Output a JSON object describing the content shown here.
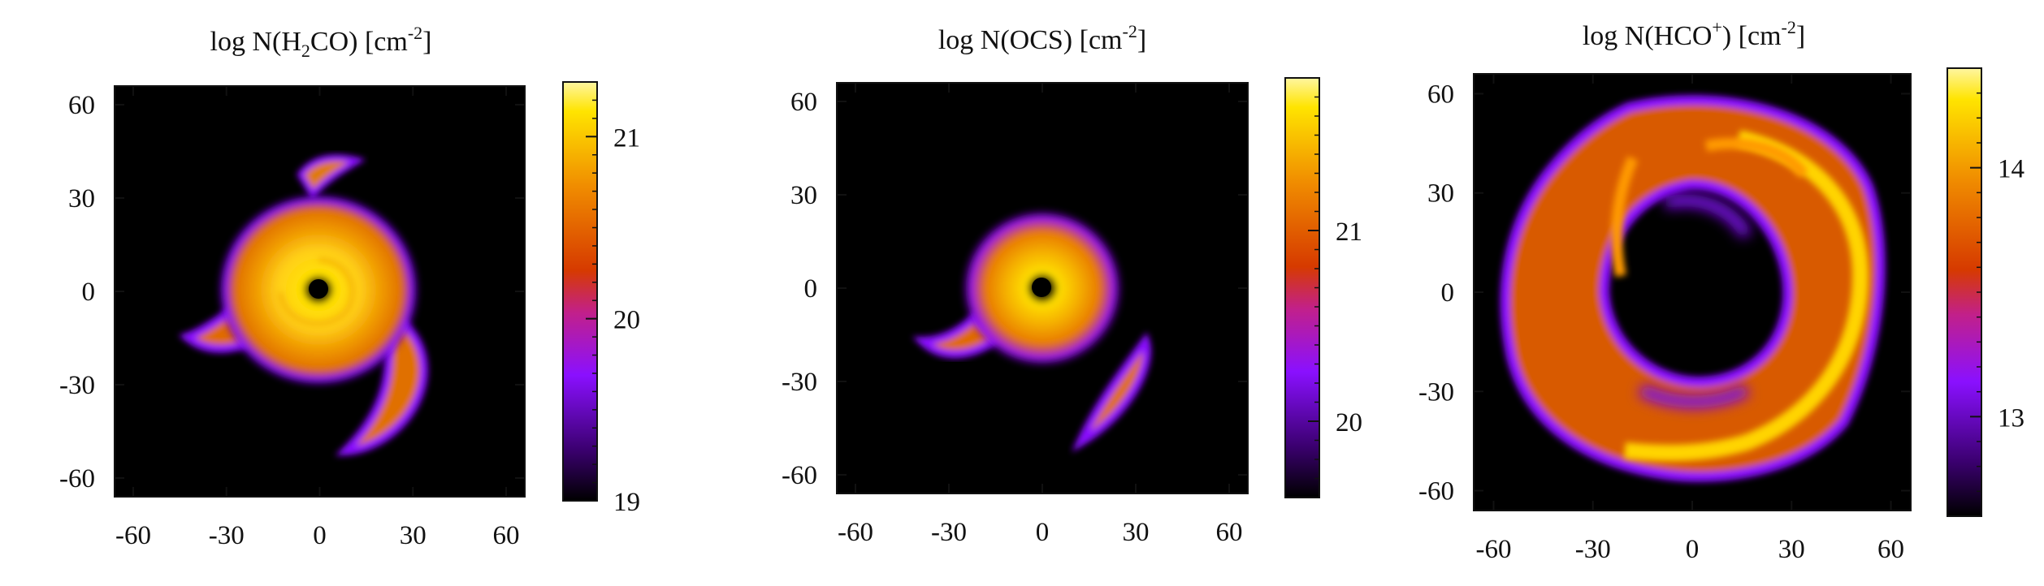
{
  "chart_data": [
    {
      "type": "heatmap",
      "title": {
        "pre": "log N(H",
        "sub": "2",
        "mid": "CO) [cm",
        "sup": "-2",
        "post": "]"
      },
      "xlabel": "",
      "ylabel": "",
      "x_ticks": [
        "-60",
        "-30",
        "0",
        "30",
        "60"
      ],
      "y_ticks": [
        "60",
        "30",
        "0",
        "-30",
        "-60"
      ],
      "x_tick_values": [
        -60,
        -30,
        0,
        30,
        60
      ],
      "y_tick_values": [
        60,
        30,
        0,
        -30,
        -60
      ],
      "xlim": [
        -66,
        66
      ],
      "ylim": [
        -66,
        66
      ],
      "colorbar": {
        "range": [
          19.0,
          21.3
        ],
        "ticks": [
          "19",
          "20",
          "21"
        ],
        "tick_values": [
          19,
          20,
          21
        ]
      },
      "structure": "compact spiral disk with bright core, inner hole near center, trailing arms to lower right and left",
      "colormap": "black-purple-red-orange-yellow",
      "colors": [
        "#000000",
        "#3a006e",
        "#8a10ff",
        "#c2208a",
        "#d63a00",
        "#f08c00",
        "#ffe400",
        "#fffbb0"
      ]
    },
    {
      "type": "heatmap",
      "title": {
        "pre": "log N(OCS) [cm",
        "sup": "-2",
        "post": "]"
      },
      "xlabel": "",
      "ylabel": "",
      "x_ticks": [
        "-60",
        "-30",
        "0",
        "30",
        "60"
      ],
      "y_ticks": [
        "60",
        "30",
        "0",
        "-30",
        "-60"
      ],
      "x_tick_values": [
        -60,
        -30,
        0,
        30,
        60
      ],
      "y_tick_values": [
        60,
        30,
        0,
        -30,
        -60
      ],
      "xlim": [
        -66,
        66
      ],
      "ylim": [
        -66,
        66
      ],
      "colorbar": {
        "range": [
          19.6,
          21.8
        ],
        "ticks": [
          "20",
          "21"
        ],
        "tick_values": [
          20,
          21
        ]
      },
      "structure": "smaller spiral disk with bright core, inner hole and a detached arm segment to lower right",
      "colormap": "black-purple-red-orange-yellow",
      "colors": [
        "#000000",
        "#3a006e",
        "#8a10ff",
        "#c2208a",
        "#d63a00",
        "#f08c00",
        "#ffe400",
        "#fffbb0"
      ]
    },
    {
      "type": "heatmap",
      "title": {
        "pre": "log N(HCO",
        "sup": "+",
        "post": ") [cm",
        "sup2": "-2",
        "post2": "]"
      },
      "xlabel": "",
      "ylabel": "",
      "x_ticks": [
        "-60",
        "-30",
        "0",
        "30",
        "60"
      ],
      "y_ticks": [
        "60",
        "30",
        "0",
        "-30",
        "-60"
      ],
      "x_tick_values": [
        -60,
        -30,
        0,
        30,
        60
      ],
      "y_tick_values": [
        60,
        30,
        0,
        -30,
        -60
      ],
      "xlim": [
        -66,
        66
      ],
      "ylim": [
        -66,
        66
      ],
      "colorbar": {
        "range": [
          12.6,
          14.4
        ],
        "ticks": [
          "13",
          "14"
        ],
        "tick_values": [
          13,
          14
        ]
      },
      "structure": "extended ring with empty central cavity and bright spiral arms along the outer edge",
      "colormap": "black-purple-red-orange-yellow",
      "colors": [
        "#000000",
        "#3a006e",
        "#8a10ff",
        "#c2208a",
        "#d63a00",
        "#f08c00",
        "#ffe400",
        "#fffbb0"
      ]
    }
  ]
}
